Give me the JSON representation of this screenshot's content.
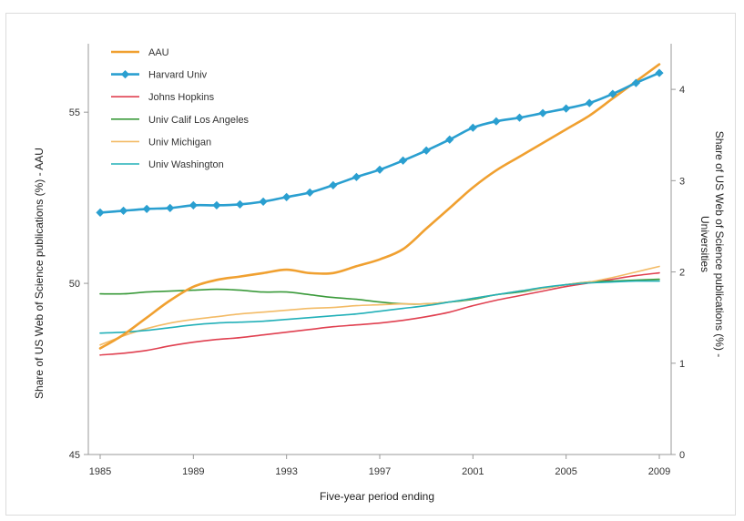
{
  "chart_data": {
    "type": "line",
    "title": "",
    "xlabel": "Five-year period ending",
    "ylabel_left": "Share of US Web of Science publications (%) - AAU",
    "ylabel_right_lines": [
      "Share of US Web of Science publications (%) -",
      "Universities"
    ],
    "x": [
      1985,
      1986,
      1987,
      1988,
      1989,
      1990,
      1991,
      1992,
      1993,
      1994,
      1995,
      1996,
      1997,
      1998,
      1999,
      2000,
      2001,
      2002,
      2003,
      2004,
      2005,
      2006,
      2007,
      2008,
      2009
    ],
    "x_ticks": [
      "1985",
      "1989",
      "1993",
      "1997",
      "2001",
      "2005",
      "2009"
    ],
    "x_tick_values": [
      1985,
      1989,
      1993,
      1997,
      2001,
      2005,
      2009
    ],
    "left_axis": {
      "range": [
        45,
        57
      ],
      "ticks": [
        "45",
        "50",
        "55"
      ],
      "tick_values": [
        45,
        50,
        55
      ]
    },
    "right_axis": {
      "range": [
        0,
        4.5
      ],
      "ticks": [
        "0",
        "1",
        "2",
        "3",
        "4"
      ],
      "tick_values": [
        0,
        1,
        2,
        3,
        4
      ]
    },
    "legend_position": "top-left",
    "series": [
      {
        "name": "AAU",
        "axis": "left",
        "color": "#f0a030",
        "width": 2.6,
        "markers": false,
        "values": [
          48.1,
          48.5,
          49.0,
          49.5,
          49.9,
          50.1,
          50.2,
          50.3,
          50.4,
          50.3,
          50.3,
          50.5,
          50.7,
          51.0,
          51.6,
          52.2,
          52.8,
          53.3,
          53.7,
          54.1,
          54.5,
          54.9,
          55.4,
          55.9,
          56.4
        ]
      },
      {
        "name": "Harvard Univ",
        "axis": "right",
        "color": "#2a9fd0",
        "width": 2.6,
        "markers": true,
        "values": [
          2.65,
          2.67,
          2.69,
          2.7,
          2.73,
          2.73,
          2.74,
          2.77,
          2.82,
          2.87,
          2.95,
          3.04,
          3.12,
          3.22,
          3.33,
          3.45,
          3.58,
          3.65,
          3.69,
          3.74,
          3.79,
          3.85,
          3.95,
          4.07,
          4.18
        ]
      },
      {
        "name": "Johns Hopkins",
        "axis": "right",
        "color": "#e04050",
        "width": 1.6,
        "markers": false,
        "values": [
          1.09,
          1.11,
          1.14,
          1.19,
          1.23,
          1.26,
          1.28,
          1.31,
          1.34,
          1.37,
          1.4,
          1.42,
          1.44,
          1.47,
          1.51,
          1.56,
          1.63,
          1.69,
          1.74,
          1.79,
          1.84,
          1.88,
          1.92,
          1.96,
          1.99
        ]
      },
      {
        "name": "Univ Calif Los Angeles",
        "axis": "right",
        "color": "#3a9a3a",
        "width": 1.6,
        "markers": false,
        "values": [
          1.76,
          1.76,
          1.78,
          1.79,
          1.8,
          1.81,
          1.8,
          1.78,
          1.78,
          1.75,
          1.72,
          1.7,
          1.67,
          1.65,
          1.65,
          1.67,
          1.7,
          1.75,
          1.78,
          1.82,
          1.86,
          1.89,
          1.9,
          1.91,
          1.92
        ]
      },
      {
        "name": "Univ Michigan",
        "axis": "right",
        "color": "#f3bb66",
        "width": 1.6,
        "markers": false,
        "values": [
          1.2,
          1.3,
          1.38,
          1.44,
          1.48,
          1.51,
          1.54,
          1.56,
          1.58,
          1.6,
          1.61,
          1.63,
          1.64,
          1.65,
          1.65,
          1.67,
          1.71,
          1.75,
          1.79,
          1.82,
          1.86,
          1.89,
          1.94,
          2.0,
          2.06
        ]
      },
      {
        "name": "Univ Washington",
        "axis": "right",
        "color": "#22b0b8",
        "width": 1.6,
        "markers": false,
        "values": [
          1.33,
          1.34,
          1.36,
          1.39,
          1.42,
          1.44,
          1.45,
          1.46,
          1.48,
          1.5,
          1.52,
          1.54,
          1.57,
          1.6,
          1.63,
          1.67,
          1.71,
          1.75,
          1.79,
          1.83,
          1.86,
          1.88,
          1.89,
          1.9,
          1.9
        ]
      }
    ]
  }
}
